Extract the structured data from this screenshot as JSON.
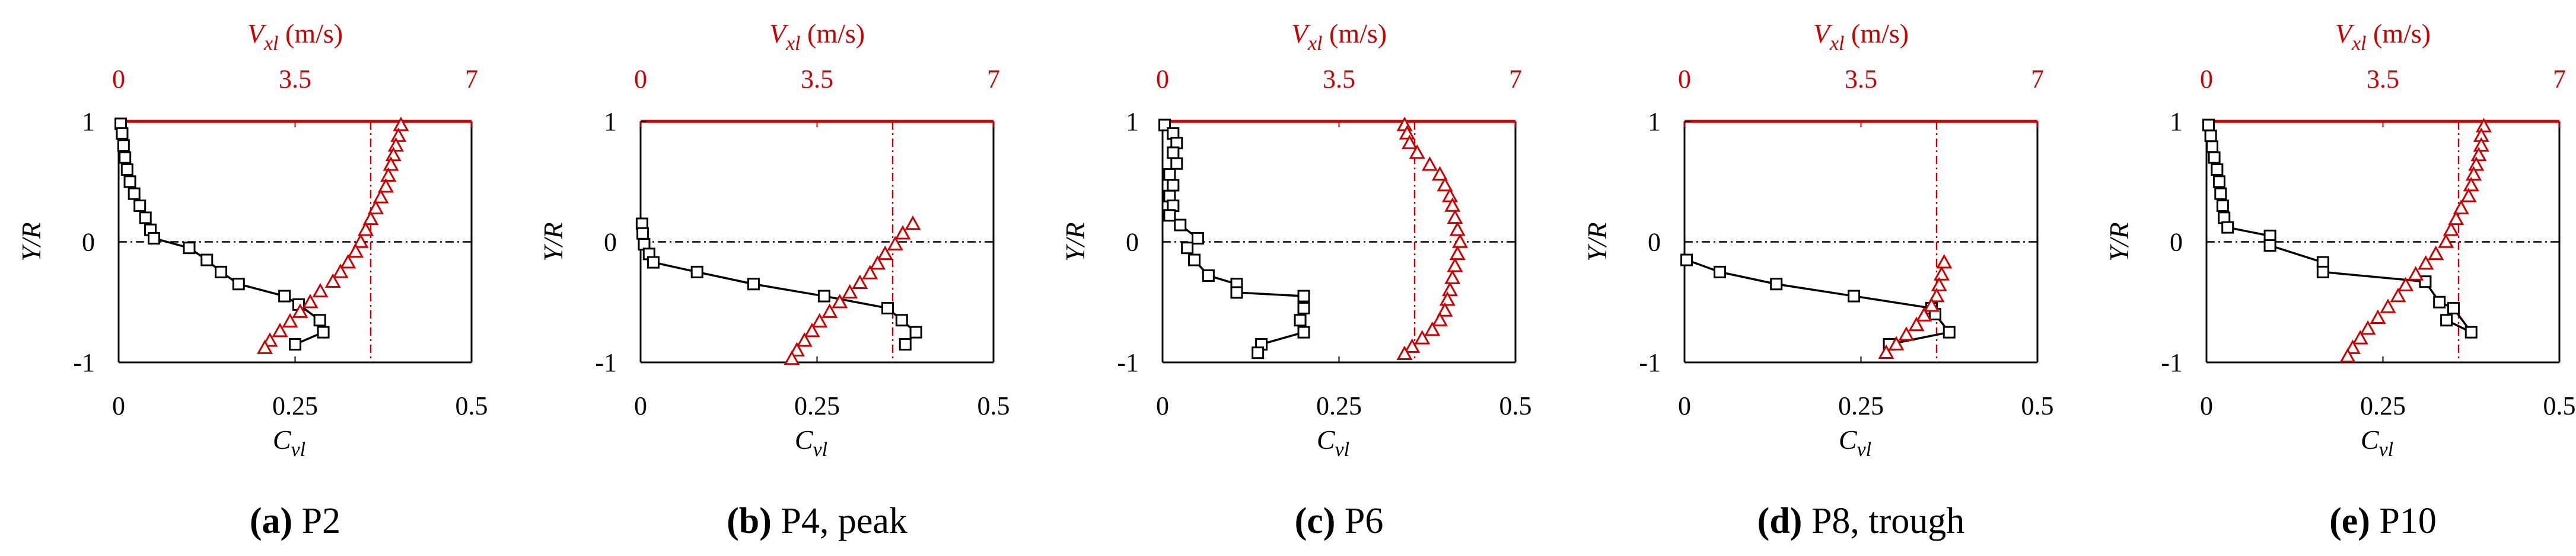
{
  "figure": {
    "top_axis": {
      "label_symbol": "V",
      "label_sub": "xl",
      "label_unit": " (m/s)",
      "ticks": [
        "0",
        "3.5",
        "7"
      ],
      "range": [
        0,
        7
      ]
    },
    "bottom_axis": {
      "label_symbol": "C",
      "label_sub": "vl",
      "ticks": [
        "0",
        "0.25",
        "0.5"
      ],
      "range": [
        0,
        0.5
      ]
    },
    "left_axis": {
      "label": "Y/R",
      "ticks": [
        "1",
        "0",
        "-1"
      ],
      "range": [
        -1,
        1
      ]
    },
    "colors": {
      "velocity": "#cc0000",
      "coefficient": "#000000"
    }
  },
  "chart_data": [
    {
      "type": "line",
      "caption_letter": "(a)",
      "caption_text": " P2",
      "mean_velocity_line_x": 5.0,
      "series": [
        {
          "variable": "C_vl",
          "marker": "square",
          "axis": "bottom",
          "line": true,
          "points": [
            [
              0.003,
              0.98
            ],
            [
              0.005,
              0.9
            ],
            [
              0.007,
              0.8
            ],
            [
              0.009,
              0.7
            ],
            [
              0.012,
              0.6
            ],
            [
              0.016,
              0.5
            ],
            [
              0.022,
              0.4
            ],
            [
              0.03,
              0.3
            ],
            [
              0.038,
              0.2
            ],
            [
              0.045,
              0.1
            ],
            [
              0.05,
              0.03
            ],
            [
              0.1,
              -0.05
            ],
            [
              0.125,
              -0.15
            ],
            [
              0.145,
              -0.25
            ],
            [
              0.17,
              -0.35
            ],
            [
              0.235,
              -0.45
            ],
            [
              0.255,
              -0.52
            ],
            [
              0.285,
              -0.65
            ],
            [
              0.29,
              -0.75
            ],
            [
              0.25,
              -0.85
            ]
          ]
        },
        {
          "variable": "V_xl",
          "marker": "triangle",
          "axis": "top",
          "line": false,
          "points": [
            [
              5.6,
              0.97
            ],
            [
              5.55,
              0.88
            ],
            [
              5.5,
              0.8
            ],
            [
              5.45,
              0.72
            ],
            [
              5.4,
              0.64
            ],
            [
              5.35,
              0.55
            ],
            [
              5.3,
              0.46
            ],
            [
              5.2,
              0.37
            ],
            [
              5.1,
              0.28
            ],
            [
              5.0,
              0.19
            ],
            [
              4.9,
              0.1
            ],
            [
              4.8,
              0.0
            ],
            [
              4.7,
              -0.08
            ],
            [
              4.55,
              -0.17
            ],
            [
              4.4,
              -0.25
            ],
            [
              4.25,
              -0.33
            ],
            [
              4.0,
              -0.41
            ],
            [
              3.8,
              -0.5
            ],
            [
              3.6,
              -0.58
            ],
            [
              3.4,
              -0.66
            ],
            [
              3.2,
              -0.74
            ],
            [
              3.0,
              -0.82
            ],
            [
              2.9,
              -0.88
            ]
          ]
        }
      ]
    },
    {
      "type": "line",
      "caption_letter": "(b)",
      "caption_text": " P4, peak",
      "mean_velocity_line_x": 5.0,
      "series": [
        {
          "variable": "C_vl",
          "marker": "square",
          "axis": "bottom",
          "line": true,
          "points": [
            [
              0.002,
              0.15
            ],
            [
              0.003,
              0.07
            ],
            [
              0.005,
              -0.02
            ],
            [
              0.012,
              -0.1
            ],
            [
              0.018,
              -0.17
            ],
            [
              0.08,
              -0.25
            ],
            [
              0.16,
              -0.35
            ],
            [
              0.26,
              -0.45
            ],
            [
              0.35,
              -0.55
            ],
            [
              0.37,
              -0.65
            ],
            [
              0.39,
              -0.75
            ],
            [
              0.375,
              -0.85
            ]
          ]
        },
        {
          "variable": "V_xl",
          "marker": "triangle",
          "axis": "top",
          "line": false,
          "points": [
            [
              5.4,
              0.15
            ],
            [
              5.2,
              0.07
            ],
            [
              5.05,
              -0.02
            ],
            [
              4.85,
              -0.1
            ],
            [
              4.7,
              -0.18
            ],
            [
              4.55,
              -0.26
            ],
            [
              4.35,
              -0.34
            ],
            [
              4.15,
              -0.42
            ],
            [
              3.95,
              -0.5
            ],
            [
              3.75,
              -0.58
            ],
            [
              3.55,
              -0.66
            ],
            [
              3.4,
              -0.74
            ],
            [
              3.25,
              -0.82
            ],
            [
              3.1,
              -0.9
            ],
            [
              3.0,
              -0.97
            ]
          ]
        }
      ]
    },
    {
      "type": "line",
      "caption_letter": "(c)",
      "caption_text": " P6",
      "mean_velocity_line_x": 5.0,
      "series": [
        {
          "variable": "C_vl",
          "marker": "square",
          "axis": "bottom",
          "line": true,
          "points": [
            [
              0.003,
              0.97
            ],
            [
              0.015,
              0.9
            ],
            [
              0.02,
              0.82
            ],
            [
              0.015,
              0.74
            ],
            [
              0.02,
              0.65
            ],
            [
              0.01,
              0.56
            ],
            [
              0.015,
              0.47
            ],
            [
              0.01,
              0.38
            ],
            [
              0.015,
              0.3
            ],
            [
              0.01,
              0.22
            ],
            [
              0.025,
              0.14
            ],
            [
              0.05,
              0.03
            ],
            [
              0.035,
              -0.05
            ],
            [
              0.045,
              -0.15
            ],
            [
              0.065,
              -0.28
            ],
            [
              0.105,
              -0.35
            ],
            [
              0.105,
              -0.42
            ],
            [
              0.2,
              -0.45
            ],
            [
              0.2,
              -0.55
            ],
            [
              0.195,
              -0.65
            ],
            [
              0.2,
              -0.75
            ],
            [
              0.14,
              -0.85
            ],
            [
              0.135,
              -0.92
            ]
          ]
        },
        {
          "variable": "V_xl",
          "marker": "triangle",
          "axis": "top",
          "line": false,
          "points": [
            [
              4.8,
              0.97
            ],
            [
              4.85,
              0.9
            ],
            [
              4.9,
              0.82
            ],
            [
              5.05,
              0.74
            ],
            [
              5.3,
              0.64
            ],
            [
              5.5,
              0.56
            ],
            [
              5.6,
              0.47
            ],
            [
              5.7,
              0.38
            ],
            [
              5.75,
              0.3
            ],
            [
              5.8,
              0.2
            ],
            [
              5.85,
              0.1
            ],
            [
              5.9,
              0.0
            ],
            [
              5.85,
              -0.1
            ],
            [
              5.8,
              -0.2
            ],
            [
              5.75,
              -0.3
            ],
            [
              5.7,
              -0.4
            ],
            [
              5.65,
              -0.48
            ],
            [
              5.6,
              -0.57
            ],
            [
              5.5,
              -0.65
            ],
            [
              5.35,
              -0.73
            ],
            [
              5.15,
              -0.8
            ],
            [
              4.95,
              -0.87
            ],
            [
              4.8,
              -0.93
            ]
          ]
        }
      ]
    },
    {
      "type": "line",
      "caption_letter": "(d)",
      "caption_text": " P8, trough",
      "mean_velocity_line_x": 5.0,
      "series": [
        {
          "variable": "C_vl",
          "marker": "square",
          "axis": "bottom",
          "line": true,
          "points": [
            [
              0.003,
              -0.15
            ],
            [
              0.05,
              -0.25
            ],
            [
              0.13,
              -0.35
            ],
            [
              0.24,
              -0.45
            ],
            [
              0.35,
              -0.55
            ],
            [
              0.355,
              -0.6
            ],
            [
              0.375,
              -0.75
            ],
            [
              0.29,
              -0.85
            ]
          ]
        },
        {
          "variable": "V_xl",
          "marker": "triangle",
          "axis": "top",
          "line": false,
          "points": [
            [
              5.15,
              -0.17
            ],
            [
              5.1,
              -0.27
            ],
            [
              5.05,
              -0.36
            ],
            [
              5.0,
              -0.45
            ],
            [
              4.9,
              -0.53
            ],
            [
              4.75,
              -0.61
            ],
            [
              4.6,
              -0.69
            ],
            [
              4.4,
              -0.77
            ],
            [
              4.2,
              -0.85
            ],
            [
              4.0,
              -0.92
            ]
          ]
        }
      ]
    },
    {
      "type": "line",
      "caption_letter": "(e)",
      "caption_text": " P10",
      "mean_velocity_line_x": 5.0,
      "series": [
        {
          "variable": "C_vl",
          "marker": "square",
          "axis": "bottom",
          "line": true,
          "points": [
            [
              0.003,
              0.97
            ],
            [
              0.006,
              0.88
            ],
            [
              0.008,
              0.79
            ],
            [
              0.011,
              0.7
            ],
            [
              0.015,
              0.6
            ],
            [
              0.018,
              0.5
            ],
            [
              0.02,
              0.4
            ],
            [
              0.023,
              0.3
            ],
            [
              0.025,
              0.2
            ],
            [
              0.03,
              0.12
            ],
            [
              0.09,
              0.05
            ],
            [
              0.09,
              -0.03
            ],
            [
              0.165,
              -0.17
            ],
            [
              0.165,
              -0.25
            ],
            [
              0.31,
              -0.33
            ],
            [
              0.33,
              -0.5
            ],
            [
              0.35,
              -0.55
            ],
            [
              0.375,
              -0.75
            ],
            [
              0.34,
              -0.65
            ]
          ]
        },
        {
          "variable": "V_xl",
          "marker": "triangle",
          "axis": "top",
          "line": false,
          "points": [
            [
              5.5,
              0.96
            ],
            [
              5.45,
              0.88
            ],
            [
              5.45,
              0.8
            ],
            [
              5.4,
              0.72
            ],
            [
              5.35,
              0.64
            ],
            [
              5.3,
              0.56
            ],
            [
              5.25,
              0.47
            ],
            [
              5.2,
              0.38
            ],
            [
              5.05,
              0.28
            ],
            [
              4.95,
              0.19
            ],
            [
              4.85,
              0.1
            ],
            [
              4.75,
              0.0
            ],
            [
              4.55,
              -0.1
            ],
            [
              4.35,
              -0.18
            ],
            [
              4.15,
              -0.27
            ],
            [
              3.95,
              -0.36
            ],
            [
              3.8,
              -0.45
            ],
            [
              3.6,
              -0.54
            ],
            [
              3.4,
              -0.63
            ],
            [
              3.2,
              -0.72
            ],
            [
              3.05,
              -0.8
            ],
            [
              2.9,
              -0.88
            ],
            [
              2.8,
              -0.95
            ]
          ]
        }
      ]
    }
  ]
}
